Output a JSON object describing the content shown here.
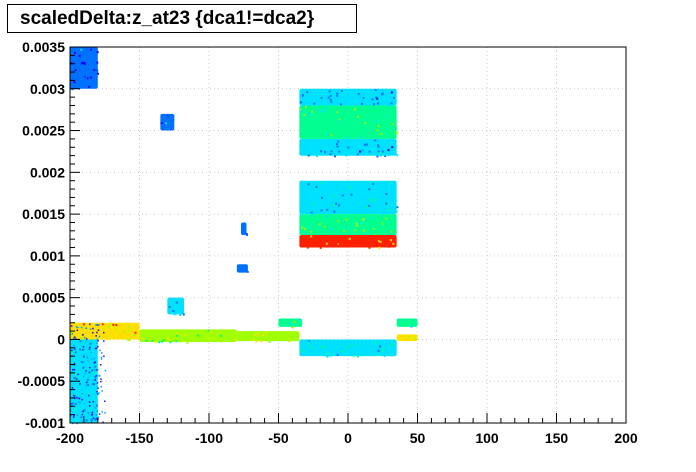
{
  "chart_data": {
    "type": "heatmap",
    "title": "scaledDelta:z_at23 {dca1!=dca2}",
    "xlim": [
      -200,
      200
    ],
    "ylim": [
      -0.001,
      0.0035
    ],
    "x_ticks": [
      -200,
      -150,
      -100,
      -50,
      0,
      50,
      100,
      150,
      200
    ],
    "x_tick_labels": [
      "-200",
      "-150",
      "-100",
      "-50",
      "0",
      "50",
      "100",
      "150",
      "200"
    ],
    "y_ticks": [
      -0.001,
      -0.0005,
      0,
      0.0005,
      0.001,
      0.0015,
      0.002,
      0.0025,
      0.003,
      0.0035
    ],
    "y_tick_labels": [
      "-0.001",
      "-0.0005",
      "0",
      "0.0005",
      "0.001",
      "0.0015",
      "0.002",
      "0.0025",
      "0.003",
      "0.0035"
    ],
    "grid": true,
    "colormap": [
      "#1f00ff",
      "#0070ff",
      "#00e0ff",
      "#00ff90",
      "#a0ff00",
      "#ffe000",
      "#ff2000"
    ],
    "regions": [
      {
        "x": [
          -35,
          35
        ],
        "y": [
          0.00225,
          0.0022
        ],
        "level": 0.35
      },
      {
        "x": [
          -35,
          35
        ],
        "y": [
          0.0024,
          0.0022
        ],
        "level": 0.25
      },
      {
        "x": [
          -35,
          35
        ],
        "y": [
          0.0028,
          0.0024
        ],
        "level": 0.5
      },
      {
        "x": [
          -35,
          35
        ],
        "y": [
          0.003,
          0.0028
        ],
        "level": 0.25
      },
      {
        "x": [
          -35,
          35
        ],
        "y": [
          0.0015,
          0.0019
        ],
        "level": 0.3
      },
      {
        "x": [
          -35,
          35
        ],
        "y": [
          0.00125,
          0.0015
        ],
        "level": 0.55
      },
      {
        "x": [
          -35,
          35
        ],
        "y": [
          0.0011,
          0.00125
        ],
        "level": 1.0
      },
      {
        "x": [
          -35,
          35
        ],
        "y": [
          -0.0002,
          0.0
        ],
        "level": 0.4
      },
      {
        "x": [
          -200,
          -150
        ],
        "y": [
          0.0,
          0.0002
        ],
        "level": 0.8
      },
      {
        "x": [
          -150,
          -80
        ],
        "y": [
          -3e-05,
          0.00012
        ],
        "level": 0.65
      },
      {
        "x": [
          -80,
          -35
        ],
        "y": [
          -2e-05,
          0.0001
        ],
        "level": 0.7
      },
      {
        "x": [
          -200,
          -180
        ],
        "y": [
          -0.001,
          0.0
        ],
        "level": 0.3
      },
      {
        "x": [
          -200,
          -180
        ],
        "y": [
          0.003,
          0.0035
        ],
        "level": 0.1
      },
      {
        "x": [
          -130,
          -118
        ],
        "y": [
          0.0003,
          0.0005
        ],
        "level": 0.3
      },
      {
        "x": [
          -50,
          -33
        ],
        "y": [
          0.00015,
          0.00025
        ],
        "level": 0.45
      },
      {
        "x": [
          35,
          50
        ],
        "y": [
          0.00015,
          0.00025
        ],
        "level": 0.45
      },
      {
        "x": [
          35,
          50
        ],
        "y": [
          -2e-05,
          6e-05
        ],
        "level": 0.75
      },
      {
        "x": [
          -80,
          -72
        ],
        "y": [
          0.0008,
          0.0009
        ],
        "level": 0.2
      },
      {
        "x": [
          -77,
          -73
        ],
        "y": [
          0.00125,
          0.0014
        ],
        "level": 0.1
      },
      {
        "x": [
          -135,
          -125
        ],
        "y": [
          0.0025,
          0.0027
        ],
        "level": 0.1
      }
    ]
  }
}
